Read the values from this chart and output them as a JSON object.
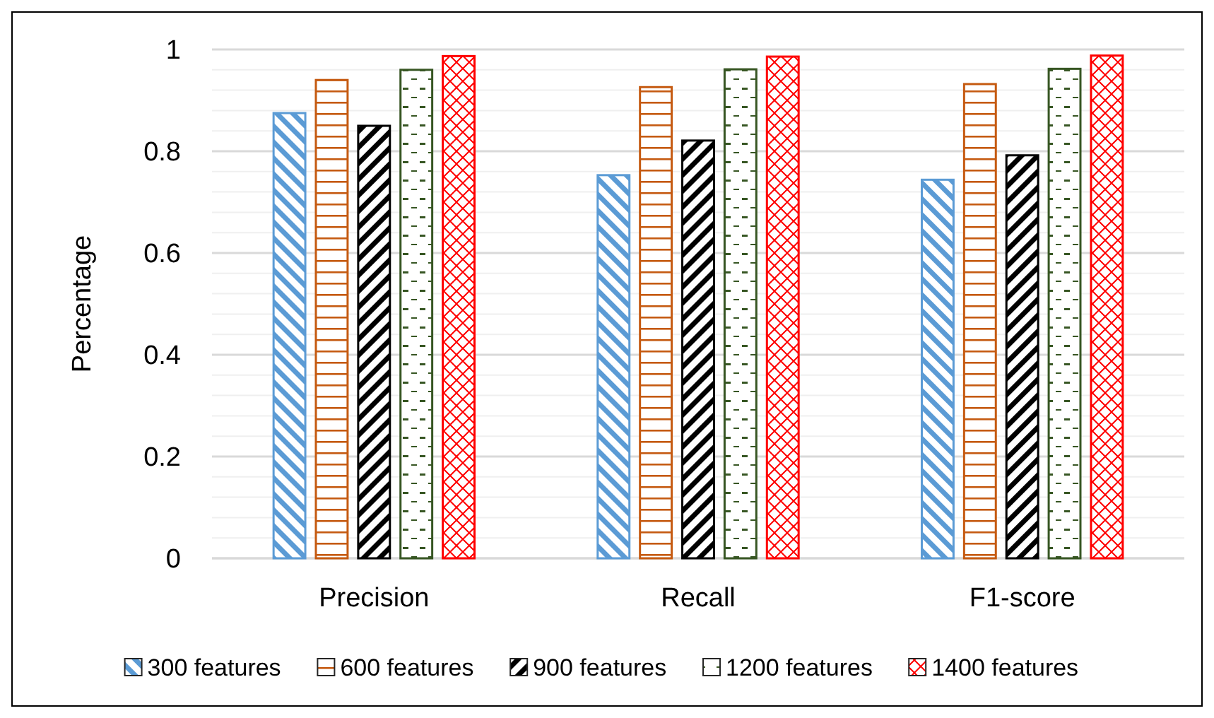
{
  "chart_data": {
    "type": "bar",
    "ylabel": "Percentage",
    "categories": [
      "Precision",
      "Recall",
      "F1-score"
    ],
    "series": [
      {
        "name": "300 features",
        "color": "#5b9bd5",
        "values": [
          0.875,
          0.753,
          0.744
        ]
      },
      {
        "name": "600 features",
        "color": "#c55a11",
        "values": [
          0.94,
          0.926,
          0.932
        ]
      },
      {
        "name": "900 features",
        "color": "#000000",
        "values": [
          0.85,
          0.821,
          0.792
        ]
      },
      {
        "name": "1200 features",
        "color": "#375623",
        "values": [
          0.96,
          0.961,
          0.962
        ]
      },
      {
        "name": "1400 features",
        "color": "#ff0000",
        "values": [
          0.987,
          0.986,
          0.988
        ]
      }
    ],
    "ylim": [
      0,
      1
    ],
    "yticks": [
      0,
      {
        "value": 0.04,
        "label": null
      },
      {
        "value": 0.08,
        "label": null
      },
      {
        "value": 0.12,
        "label": null
      },
      {
        "value": 0.16,
        "label": null
      },
      0.2,
      {
        "value": 0.24,
        "label": null
      },
      {
        "value": 0.28,
        "label": null
      },
      {
        "value": 0.32,
        "label": null
      },
      {
        "value": 0.36,
        "label": null
      },
      0.4,
      {
        "value": 0.44,
        "label": null
      },
      {
        "value": 0.48,
        "label": null
      },
      {
        "value": 0.52,
        "label": null
      },
      {
        "value": 0.56,
        "label": null
      },
      0.6,
      {
        "value": 0.64,
        "label": null
      },
      {
        "value": 0.68,
        "label": null
      },
      {
        "value": 0.72,
        "label": null
      },
      {
        "value": 0.76,
        "label": null
      },
      0.8,
      {
        "value": 0.84,
        "label": null
      },
      {
        "value": 0.88,
        "label": null
      },
      {
        "value": 0.92,
        "label": null
      },
      {
        "value": 0.96,
        "label": null
      },
      1
    ],
    "grid": true,
    "legend": "bottom"
  }
}
